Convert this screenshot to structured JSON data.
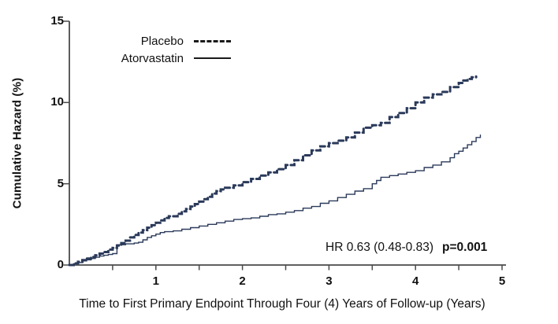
{
  "colors": {
    "curve": "#2b3a5a",
    "legend_line": "#1a1a1a",
    "axis": "#4a4a4a",
    "text": "#111111",
    "background": "#ffffff"
  },
  "annotation": {
    "hr_text": "HR 0.63 (0.48-0.83)",
    "p_text": "p=0.001"
  },
  "chart_data": {
    "type": "line",
    "subtype": "step-cumulative-hazard",
    "title": "",
    "xlabel": "Time to First Primary Endpoint Through Four (4) Years of Follow-up (Years)",
    "ylabel": "Cumulative Hazard (%)",
    "xlim": [
      0,
      5
    ],
    "ylim": [
      0,
      15
    ],
    "x_major_ticks": [
      1,
      2,
      3,
      4,
      5
    ],
    "x_minor_ticks": [
      0.5,
      1.5,
      2.5,
      3.5,
      4.5
    ],
    "y_ticks": [
      0,
      5,
      10,
      15
    ],
    "grid": false,
    "legend_position": "top-left-inside",
    "annotation": "HR 0.63 (0.48-0.83)  p=0.001",
    "step": "after",
    "series": [
      {
        "name": "Placebo",
        "style": "dashed",
        "stroke_width": 3,
        "points": [
          [
            0,
            0
          ],
          [
            0.05,
            0.1
          ],
          [
            0.1,
            0.2
          ],
          [
            0.15,
            0.3
          ],
          [
            0.2,
            0.4
          ],
          [
            0.25,
            0.5
          ],
          [
            0.3,
            0.6
          ],
          [
            0.35,
            0.7
          ],
          [
            0.4,
            0.8
          ],
          [
            0.45,
            0.95
          ],
          [
            0.5,
            1.05
          ],
          [
            0.55,
            1.2
          ],
          [
            0.6,
            1.35
          ],
          [
            0.65,
            1.5
          ],
          [
            0.7,
            1.7
          ],
          [
            0.75,
            1.85
          ],
          [
            0.8,
            2.0
          ],
          [
            0.85,
            2.15
          ],
          [
            0.9,
            2.3
          ],
          [
            0.95,
            2.45
          ],
          [
            1.0,
            2.6
          ],
          [
            1.05,
            2.75
          ],
          [
            1.1,
            2.9
          ],
          [
            1.15,
            3.0
          ],
          [
            1.25,
            3.15
          ],
          [
            1.3,
            3.3
          ],
          [
            1.35,
            3.45
          ],
          [
            1.4,
            3.6
          ],
          [
            1.45,
            3.75
          ],
          [
            1.5,
            3.9
          ],
          [
            1.55,
            4.05
          ],
          [
            1.6,
            4.2
          ],
          [
            1.65,
            4.4
          ],
          [
            1.7,
            4.55
          ],
          [
            1.75,
            4.65
          ],
          [
            1.8,
            4.75
          ],
          [
            1.9,
            4.9
          ],
          [
            2.0,
            5.1
          ],
          [
            2.1,
            5.3
          ],
          [
            2.2,
            5.5
          ],
          [
            2.3,
            5.7
          ],
          [
            2.4,
            5.9
          ],
          [
            2.5,
            6.15
          ],
          [
            2.6,
            6.45
          ],
          [
            2.7,
            6.75
          ],
          [
            2.8,
            7.05
          ],
          [
            2.9,
            7.3
          ],
          [
            3.0,
            7.5
          ],
          [
            3.1,
            7.65
          ],
          [
            3.2,
            7.85
          ],
          [
            3.3,
            8.15
          ],
          [
            3.4,
            8.45
          ],
          [
            3.5,
            8.6
          ],
          [
            3.6,
            8.75
          ],
          [
            3.7,
            9.1
          ],
          [
            3.8,
            9.35
          ],
          [
            3.9,
            9.65
          ],
          [
            4.0,
            10.0
          ],
          [
            4.1,
            10.3
          ],
          [
            4.2,
            10.5
          ],
          [
            4.3,
            10.65
          ],
          [
            4.4,
            10.95
          ],
          [
            4.5,
            11.2
          ],
          [
            4.55,
            11.35
          ],
          [
            4.6,
            11.45
          ],
          [
            4.65,
            11.55
          ],
          [
            4.7,
            11.6
          ]
        ]
      },
      {
        "name": "Atorvastatin",
        "style": "solid",
        "stroke_width": 1.4,
        "points": [
          [
            0,
            0
          ],
          [
            0.05,
            0.08
          ],
          [
            0.1,
            0.15
          ],
          [
            0.15,
            0.25
          ],
          [
            0.2,
            0.32
          ],
          [
            0.25,
            0.4
          ],
          [
            0.3,
            0.48
          ],
          [
            0.35,
            0.55
          ],
          [
            0.4,
            0.6
          ],
          [
            0.45,
            0.65
          ],
          [
            0.5,
            0.7
          ],
          [
            0.55,
            1.25
          ],
          [
            0.65,
            1.3
          ],
          [
            0.75,
            1.35
          ],
          [
            0.8,
            1.4
          ],
          [
            0.85,
            1.55
          ],
          [
            0.9,
            1.7
          ],
          [
            0.95,
            1.8
          ],
          [
            1.0,
            1.9
          ],
          [
            1.05,
            2.0
          ],
          [
            1.1,
            2.05
          ],
          [
            1.2,
            2.1
          ],
          [
            1.3,
            2.2
          ],
          [
            1.4,
            2.3
          ],
          [
            1.5,
            2.4
          ],
          [
            1.6,
            2.5
          ],
          [
            1.7,
            2.6
          ],
          [
            1.8,
            2.7
          ],
          [
            1.9,
            2.8
          ],
          [
            2.0,
            2.85
          ],
          [
            2.1,
            2.9
          ],
          [
            2.2,
            3.0
          ],
          [
            2.3,
            3.1
          ],
          [
            2.4,
            3.15
          ],
          [
            2.5,
            3.25
          ],
          [
            2.6,
            3.35
          ],
          [
            2.7,
            3.5
          ],
          [
            2.8,
            3.6
          ],
          [
            2.9,
            3.8
          ],
          [
            3.0,
            3.95
          ],
          [
            3.1,
            4.15
          ],
          [
            3.2,
            4.35
          ],
          [
            3.3,
            4.55
          ],
          [
            3.4,
            4.7
          ],
          [
            3.5,
            5.0
          ],
          [
            3.55,
            5.2
          ],
          [
            3.6,
            5.4
          ],
          [
            3.7,
            5.5
          ],
          [
            3.8,
            5.6
          ],
          [
            3.9,
            5.7
          ],
          [
            4.0,
            5.8
          ],
          [
            4.1,
            6.0
          ],
          [
            4.2,
            6.15
          ],
          [
            4.3,
            6.35
          ],
          [
            4.4,
            6.6
          ],
          [
            4.45,
            6.85
          ],
          [
            4.5,
            7.0
          ],
          [
            4.55,
            7.2
          ],
          [
            4.6,
            7.4
          ],
          [
            4.65,
            7.6
          ],
          [
            4.7,
            7.85
          ],
          [
            4.75,
            8.0
          ]
        ]
      }
    ]
  }
}
